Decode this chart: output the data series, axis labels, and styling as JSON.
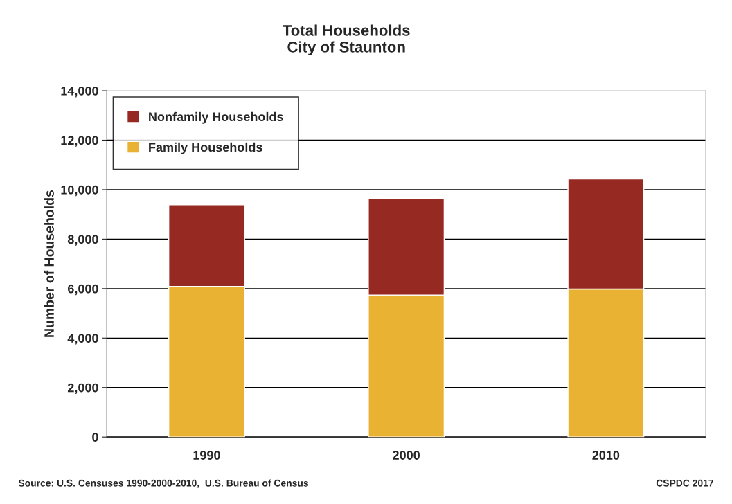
{
  "chart_data": {
    "type": "bar",
    "title": "Total Households\nCity of Staunton",
    "ylabel": "Number of Households",
    "categories": [
      "1990",
      "2000",
      "2010"
    ],
    "stacked": true,
    "series": [
      {
        "name": "Family Households",
        "color": "#e9b233",
        "values": [
          6090,
          5740,
          5980
        ]
      },
      {
        "name": "Nonfamily Households",
        "color": "#962a23",
        "values": [
          3300,
          3900,
          4450
        ]
      }
    ],
    "ylim": [
      0,
      14000
    ],
    "yticks": [
      {
        "value": 0,
        "label": "0"
      },
      {
        "value": 2000,
        "label": "2,000"
      },
      {
        "value": 4000,
        "label": "4,000"
      },
      {
        "value": 6000,
        "label": "6,000"
      },
      {
        "value": 8000,
        "label": "8,000"
      },
      {
        "value": 10000,
        "label": "10,000"
      },
      {
        "value": 12000,
        "label": "12,000"
      },
      {
        "value": 14000,
        "label": "14,000"
      }
    ],
    "grid": "y",
    "legend": "top left",
    "annotations": [
      "Source: U.S. Censuses 1990-2000-2010,  U.S. Bureau of Census",
      "CSPDC 2017"
    ]
  }
}
